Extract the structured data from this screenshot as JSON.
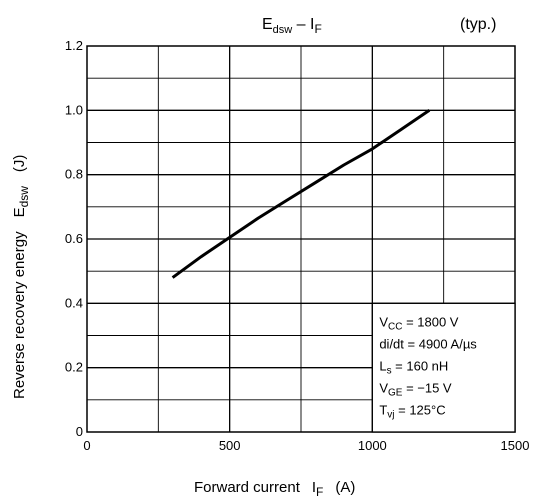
{
  "chart_data": {
    "type": "line",
    "title_main": "E",
    "title_main_sub": "dsw",
    "title_sep": " – I",
    "title_sep_sub": "F",
    "note": "(typ.)",
    "xlabel_text": "Forward current",
    "xlabel_symbol": "I",
    "xlabel_symbol_sub": "F",
    "xlabel_unit": "(A)",
    "ylabel_text": "Reverse recovery energy",
    "ylabel_symbol": "E",
    "ylabel_symbol_sub": "dsw",
    "ylabel_unit": "(J)",
    "xlim": [
      0,
      1500
    ],
    "ylim": [
      0,
      1.2
    ],
    "x_ticks": [
      0,
      500,
      1000,
      1500
    ],
    "x_tick_labels": [
      "0",
      "500",
      "1000",
      "1500"
    ],
    "y_ticks": [
      0,
      0.2,
      0.4,
      0.6,
      0.8,
      1.0,
      1.2
    ],
    "y_tick_labels": [
      "0",
      "0.2",
      "0.4",
      "0.6",
      "0.8",
      "1.0",
      "1.2"
    ],
    "grid": true,
    "series": [
      {
        "x": [
          300,
          400,
          500,
          600,
          700,
          800,
          900,
          1000,
          1100,
          1200
        ],
        "y": [
          0.48,
          0.545,
          0.605,
          0.665,
          0.72,
          0.775,
          0.83,
          0.88,
          0.94,
          1.0
        ]
      }
    ],
    "conditions": [
      {
        "main": "V",
        "sub": "CC",
        "rest": " = 1800 V"
      },
      {
        "main": "di/dt = 4900 A/µs",
        "sub": "",
        "rest": ""
      },
      {
        "main": "L",
        "sub": "s",
        "rest": " = 160 nH"
      },
      {
        "main": "V",
        "sub": "GE",
        "rest": " = −15 V"
      },
      {
        "main": "T",
        "sub": "vj",
        "rest": " = 125°C"
      }
    ]
  }
}
